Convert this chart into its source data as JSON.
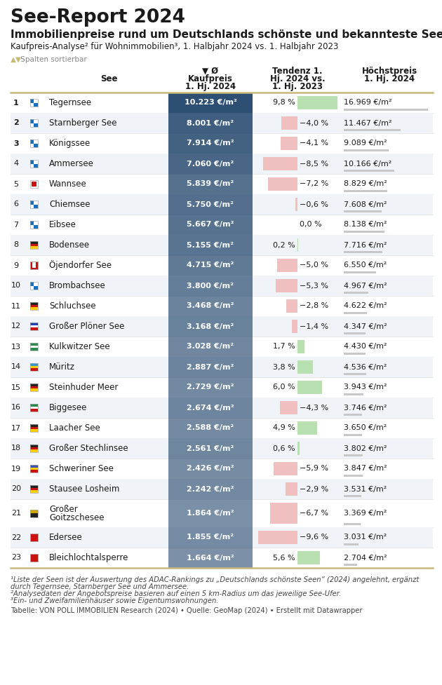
{
  "title1": "See-Report 2024",
  "title2": "Immobilienpreise rund um Deutschlands schönste und bekannteste Seen¹",
  "subtitle": "Kaufpreis-Analyse² für Wohnimmobilien³, 1. Halbjahr 2024 vs. 1. Halbjahr 2023",
  "rows": [
    {
      "rank": 1,
      "name": "Tegernsee",
      "kaufpreis": "10.223 €/m²",
      "tendenz": 9.8,
      "hoechstpreis": "16.969 €/m²",
      "kauf_val": 10223,
      "hoch_val": 16969
    },
    {
      "rank": 2,
      "name": "Starnberger See",
      "kaufpreis": "8.001 €/m²",
      "tendenz": -4.0,
      "hoechstpreis": "11.467 €/m²",
      "kauf_val": 8001,
      "hoch_val": 11467
    },
    {
      "rank": 3,
      "name": "Königssee",
      "kaufpreis": "7.914 €/m²",
      "tendenz": -4.1,
      "hoechstpreis": "9.089 €/m²",
      "kauf_val": 7914,
      "hoch_val": 9089
    },
    {
      "rank": 4,
      "name": "Ammersee",
      "kaufpreis": "7.060 €/m²",
      "tendenz": -8.5,
      "hoechstpreis": "10.166 €/m²",
      "kauf_val": 7060,
      "hoch_val": 10166
    },
    {
      "rank": 5,
      "name": "Wannsee",
      "kaufpreis": "5.839 €/m²",
      "tendenz": -7.2,
      "hoechstpreis": "8.829 €/m²",
      "kauf_val": 5839,
      "hoch_val": 8829
    },
    {
      "rank": 6,
      "name": "Chiemsee",
      "kaufpreis": "5.750 €/m²",
      "tendenz": -0.6,
      "hoechstpreis": "7.608 €/m²",
      "kauf_val": 5750,
      "hoch_val": 7608
    },
    {
      "rank": 7,
      "name": "Eibsee",
      "kaufpreis": "5.667 €/m²",
      "tendenz": 0.0,
      "hoechstpreis": "8.138 €/m²",
      "kauf_val": 5667,
      "hoch_val": 8138
    },
    {
      "rank": 8,
      "name": "Bodensee",
      "kaufpreis": "5.155 €/m²",
      "tendenz": 0.2,
      "hoechstpreis": "7.716 €/m²",
      "kauf_val": 5155,
      "hoch_val": 7716
    },
    {
      "rank": 9,
      "name": "Öjendorfer See",
      "kaufpreis": "4.715 €/m²",
      "tendenz": -5.0,
      "hoechstpreis": "6.550 €/m²",
      "kauf_val": 4715,
      "hoch_val": 6550
    },
    {
      "rank": 10,
      "name": "Brombachsee",
      "kaufpreis": "3.800 €/m²",
      "tendenz": -5.3,
      "hoechstpreis": "4.967 €/m²",
      "kauf_val": 3800,
      "hoch_val": 4967
    },
    {
      "rank": 11,
      "name": "Schluchsee",
      "kaufpreis": "3.468 €/m²",
      "tendenz": -2.8,
      "hoechstpreis": "4.622 €/m²",
      "kauf_val": 3468,
      "hoch_val": 4622
    },
    {
      "rank": 12,
      "name": "Großer Plöner See",
      "kaufpreis": "3.168 €/m²",
      "tendenz": -1.4,
      "hoechstpreis": "4.347 €/m²",
      "kauf_val": 3168,
      "hoch_val": 4347
    },
    {
      "rank": 13,
      "name": "Kulkwitzer See",
      "kaufpreis": "3.028 €/m²",
      "tendenz": 1.7,
      "hoechstpreis": "4.430 €/m²",
      "kauf_val": 3028,
      "hoch_val": 4430
    },
    {
      "rank": 14,
      "name": "Müritz",
      "kaufpreis": "2.887 €/m²",
      "tendenz": 3.8,
      "hoechstpreis": "4.536 €/m²",
      "kauf_val": 2887,
      "hoch_val": 4536
    },
    {
      "rank": 15,
      "name": "Steinhuder Meer",
      "kaufpreis": "2.729 €/m²",
      "tendenz": 6.0,
      "hoechstpreis": "3.943 €/m²",
      "kauf_val": 2729,
      "hoch_val": 3943
    },
    {
      "rank": 16,
      "name": "Biggesee",
      "kaufpreis": "2.674 €/m²",
      "tendenz": -4.3,
      "hoechstpreis": "3.746 €/m²",
      "kauf_val": 2674,
      "hoch_val": 3746
    },
    {
      "rank": 17,
      "name": "Laacher See",
      "kaufpreis": "2.588 €/m²",
      "tendenz": 4.9,
      "hoechstpreis": "3.650 €/m²",
      "kauf_val": 2588,
      "hoch_val": 3650
    },
    {
      "rank": 18,
      "name": "Großer Stechlinsee",
      "kaufpreis": "2.561 €/m²",
      "tendenz": 0.6,
      "hoechstpreis": "3.802 €/m²",
      "kauf_val": 2561,
      "hoch_val": 3802
    },
    {
      "rank": 19,
      "name": "Schweriner See",
      "kaufpreis": "2.426 €/m²",
      "tendenz": -5.9,
      "hoechstpreis": "3.847 €/m²",
      "kauf_val": 2426,
      "hoch_val": 3847
    },
    {
      "rank": 20,
      "name": "Stausee Losheim",
      "kaufpreis": "2.242 €/m²",
      "tendenz": -2.9,
      "hoechstpreis": "3.531 €/m²",
      "kauf_val": 2242,
      "hoch_val": 3531
    },
    {
      "rank": 21,
      "name": "Großer\nGoitzschesee",
      "kaufpreis": "1.864 €/m²",
      "tendenz": -6.7,
      "hoechstpreis": "3.369 €/m²",
      "kauf_val": 1864,
      "hoch_val": 3369
    },
    {
      "rank": 22,
      "name": "Edersee",
      "kaufpreis": "1.855 €/m²",
      "tendenz": -9.6,
      "hoechstpreis": "3.031 €/m²",
      "kauf_val": 1855,
      "hoch_val": 3031
    },
    {
      "rank": 23,
      "name": "Bleichlochtalsperre",
      "kaufpreis": "1.664 €/m²",
      "tendenz": 5.6,
      "hoechstpreis": "2.704 €/m²",
      "kauf_val": 1664,
      "hoch_val": 2704
    }
  ],
  "footnote1": "¹Liste der Seen ist der Auswertung des ADAC-Rankings zu „Deutschlands schönste Seen“ (2024) angelehnt, ergänzt",
  "footnote1b": "durch Tegernsee, Starnberger See und Ammersee.",
  "footnote2": "²Analysedaten der Angebotspreise basieren auf einen 5 km-Radius um das jeweilige See-Ufer.",
  "footnote3": "³Ein- und Zweifamilienhäuser sowie Eigentumswohnungen.",
  "footnote_src": "Tabelle: VON POLL IMMOBILIEN Research (2024) • Quelle: GeoMap (2024) • Erstellt mit Datawrapper",
  "bg_color": "#ffffff",
  "row_alt_bg": "#f0f3f7",
  "kauf_col_bg": "#2d4f73",
  "kauf_col_light": "#8ba4be",
  "pos_bar": "#b8e0b0",
  "neg_bar": "#f0c0c0",
  "gold_line": "#c8b87a",
  "hoch_bar": "#c8c8c8",
  "text_dark": "#1a1a1a",
  "text_mid": "#444444",
  "text_light": "#888888",
  "max_kauf": 10223,
  "max_hoch": 16969,
  "max_tend": 10.0
}
